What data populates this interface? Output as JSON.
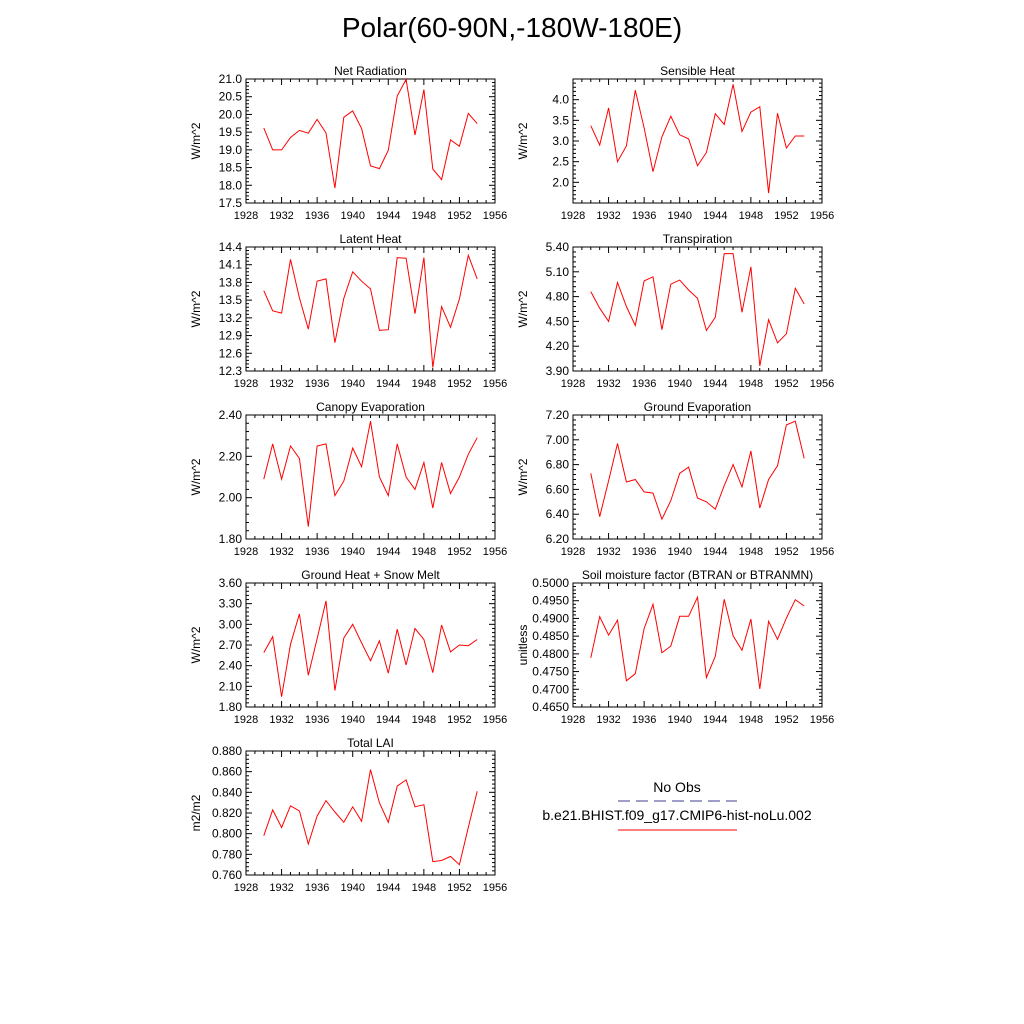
{
  "title": "Polar(60-90N,-180W-180E)",
  "line_color": "#ff0000",
  "legend": {
    "obs_label": "No Obs",
    "obs_color": "#3c3c8c",
    "obs_style": "dashed",
    "model_label": "b.e21.BHIST.f09_g17.CMIP6-hist-noLu.002",
    "model_color": "#ff0000"
  },
  "chart_data": [
    {
      "type": "line",
      "title": "Net Radiation",
      "ylabel": "W/m^2",
      "xlim": [
        1928,
        1956
      ],
      "xticks": [
        "1928",
        "1932",
        "1936",
        "1940",
        "1944",
        "1948",
        "1952",
        "1956"
      ],
      "ylim": [
        17.5,
        21.0
      ],
      "yticks": [
        "17.5",
        "18.0",
        "18.5",
        "19.0",
        "19.5",
        "20.0",
        "20.5",
        "21.0"
      ],
      "x": [
        1930,
        1931,
        1932,
        1933,
        1934,
        1935,
        1936,
        1937,
        1938,
        1939,
        1940,
        1941,
        1942,
        1943,
        1944,
        1945,
        1946,
        1947,
        1948,
        1949,
        1950,
        1951,
        1952,
        1953,
        1954
      ],
      "series": [
        {
          "values": [
            19.62,
            19.0,
            19.0,
            19.35,
            19.55,
            19.47,
            19.86,
            19.48,
            17.92,
            19.92,
            20.1,
            19.6,
            18.55,
            18.47,
            18.99,
            20.52,
            20.99,
            19.42,
            20.7,
            18.46,
            18.16,
            19.28,
            19.1,
            20.03,
            19.74
          ]
        }
      ]
    },
    {
      "type": "line",
      "title": "Sensible Heat",
      "ylabel": "W/m^2",
      "xlim": [
        1928,
        1956
      ],
      "xticks": [
        "1928",
        "1932",
        "1936",
        "1940",
        "1944",
        "1948",
        "1952",
        "1956"
      ],
      "ylim": [
        1.5,
        4.5
      ],
      "yticks": [
        "2.0",
        "2.5",
        "3.0",
        "3.5",
        "4.0"
      ],
      "x": [
        1930,
        1931,
        1932,
        1933,
        1934,
        1935,
        1936,
        1937,
        1938,
        1939,
        1940,
        1941,
        1942,
        1943,
        1944,
        1945,
        1946,
        1947,
        1948,
        1949,
        1950,
        1951,
        1952,
        1953,
        1954
      ],
      "series": [
        {
          "values": [
            3.37,
            2.9,
            3.8,
            2.5,
            2.88,
            4.23,
            3.32,
            2.26,
            3.1,
            3.6,
            3.15,
            3.05,
            2.4,
            2.72,
            3.66,
            3.4,
            4.37,
            3.23,
            3.7,
            3.83,
            1.74,
            3.67,
            2.83,
            3.12,
            3.12
          ]
        }
      ]
    },
    {
      "type": "line",
      "title": "Latent Heat",
      "ylabel": "W/m^2",
      "xlim": [
        1928,
        1956
      ],
      "xticks": [
        "1928",
        "1932",
        "1936",
        "1940",
        "1944",
        "1948",
        "1952",
        "1956"
      ],
      "ylim": [
        12.3,
        14.4
      ],
      "yticks": [
        "12.3",
        "12.6",
        "12.9",
        "13.2",
        "13.5",
        "13.8",
        "14.1",
        "14.4"
      ],
      "x": [
        1930,
        1931,
        1932,
        1933,
        1934,
        1935,
        1936,
        1937,
        1938,
        1939,
        1940,
        1941,
        1942,
        1943,
        1944,
        1945,
        1946,
        1947,
        1948,
        1949,
        1950,
        1951,
        1952,
        1953,
        1954
      ],
      "series": [
        {
          "values": [
            13.66,
            13.32,
            13.28,
            14.19,
            13.54,
            13.01,
            13.82,
            13.86,
            12.78,
            13.53,
            13.98,
            13.82,
            13.69,
            12.99,
            13.0,
            14.22,
            14.21,
            13.27,
            14.22,
            12.36,
            13.39,
            13.04,
            13.52,
            14.26,
            13.86
          ]
        }
      ]
    },
    {
      "type": "line",
      "title": "Transpiration",
      "ylabel": "W/m^2",
      "xlim": [
        1928,
        1956
      ],
      "xticks": [
        "1928",
        "1932",
        "1936",
        "1940",
        "1944",
        "1948",
        "1952",
        "1956"
      ],
      "ylim": [
        3.9,
        5.4
      ],
      "yticks": [
        "3.90",
        "4.20",
        "4.50",
        "4.80",
        "5.10",
        "5.40"
      ],
      "x": [
        1930,
        1931,
        1932,
        1933,
        1934,
        1935,
        1936,
        1937,
        1938,
        1939,
        1940,
        1941,
        1942,
        1943,
        1944,
        1945,
        1946,
        1947,
        1948,
        1949,
        1950,
        1951,
        1952,
        1953,
        1954
      ],
      "series": [
        {
          "values": [
            4.86,
            4.66,
            4.5,
            4.97,
            4.68,
            4.45,
            4.99,
            5.04,
            4.4,
            4.95,
            5.0,
            4.88,
            4.78,
            4.39,
            4.55,
            5.32,
            5.32,
            4.61,
            5.16,
            3.96,
            4.52,
            4.24,
            4.35,
            4.9,
            4.71
          ]
        }
      ]
    },
    {
      "type": "line",
      "title": "Canopy Evaporation",
      "ylabel": "W/m^2",
      "xlim": [
        1928,
        1956
      ],
      "xticks": [
        "1928",
        "1932",
        "1936",
        "1940",
        "1944",
        "1948",
        "1952",
        "1956"
      ],
      "ylim": [
        1.8,
        2.4
      ],
      "yticks": [
        "1.80",
        "2.00",
        "2.20",
        "2.40"
      ],
      "x": [
        1930,
        1931,
        1932,
        1933,
        1934,
        1935,
        1936,
        1937,
        1938,
        1939,
        1940,
        1941,
        1942,
        1943,
        1944,
        1945,
        1946,
        1947,
        1948,
        1949,
        1950,
        1951,
        1952,
        1953,
        1954
      ],
      "series": [
        {
          "values": [
            2.09,
            2.26,
            2.09,
            2.25,
            2.19,
            1.86,
            2.25,
            2.26,
            2.01,
            2.08,
            2.24,
            2.15,
            2.37,
            2.1,
            2.01,
            2.26,
            2.1,
            2.04,
            2.17,
            1.95,
            2.17,
            2.02,
            2.1,
            2.21,
            2.29
          ]
        }
      ]
    },
    {
      "type": "line",
      "title": "Ground Evaporation",
      "ylabel": "W/m^2",
      "xlim": [
        1928,
        1956
      ],
      "xticks": [
        "1928",
        "1932",
        "1936",
        "1940",
        "1944",
        "1948",
        "1952",
        "1956"
      ],
      "ylim": [
        6.2,
        7.2
      ],
      "yticks": [
        "6.20",
        "6.40",
        "6.60",
        "6.80",
        "7.00",
        "7.20"
      ],
      "x": [
        1930,
        1931,
        1932,
        1933,
        1934,
        1935,
        1936,
        1937,
        1938,
        1939,
        1940,
        1941,
        1942,
        1943,
        1944,
        1945,
        1946,
        1947,
        1948,
        1949,
        1950,
        1951,
        1952,
        1953,
        1954
      ],
      "series": [
        {
          "values": [
            6.73,
            6.38,
            6.67,
            6.97,
            6.66,
            6.68,
            6.58,
            6.57,
            6.36,
            6.51,
            6.73,
            6.78,
            6.53,
            6.5,
            6.44,
            6.63,
            6.8,
            6.62,
            6.91,
            6.45,
            6.68,
            6.79,
            7.12,
            7.15,
            6.85
          ]
        }
      ]
    },
    {
      "type": "line",
      "title": "Ground Heat + Snow Melt",
      "ylabel": "W/m^2",
      "xlim": [
        1928,
        1956
      ],
      "xticks": [
        "1928",
        "1932",
        "1936",
        "1940",
        "1944",
        "1948",
        "1952",
        "1956"
      ],
      "ylim": [
        1.8,
        3.6
      ],
      "yticks": [
        "1.80",
        "2.10",
        "2.40",
        "2.70",
        "3.00",
        "3.30",
        "3.60"
      ],
      "x": [
        1930,
        1931,
        1932,
        1933,
        1934,
        1935,
        1936,
        1937,
        1938,
        1939,
        1940,
        1941,
        1942,
        1943,
        1944,
        1945,
        1946,
        1947,
        1948,
        1949,
        1950,
        1951,
        1952,
        1953,
        1954
      ],
      "series": [
        {
          "values": [
            2.59,
            2.82,
            1.95,
            2.71,
            3.15,
            2.26,
            2.79,
            3.34,
            2.04,
            2.8,
            3.0,
            2.73,
            2.47,
            2.76,
            2.29,
            2.93,
            2.41,
            2.94,
            2.78,
            2.3,
            2.99,
            2.6,
            2.7,
            2.69,
            2.78
          ]
        }
      ]
    },
    {
      "type": "line",
      "title": "Soil moisture factor (BTRAN or BTRANMN)",
      "ylabel": "unitless",
      "xlim": [
        1928,
        1956
      ],
      "xticks": [
        "1928",
        "1932",
        "1936",
        "1940",
        "1944",
        "1948",
        "1952",
        "1956"
      ],
      "ylim": [
        0.465,
        0.5
      ],
      "yticks": [
        "0.4650",
        "0.4700",
        "0.4750",
        "0.4800",
        "0.4850",
        "0.4900",
        "0.4950",
        "0.5000"
      ],
      "x": [
        1930,
        1931,
        1932,
        1933,
        1934,
        1935,
        1936,
        1937,
        1938,
        1939,
        1940,
        1941,
        1942,
        1943,
        1944,
        1945,
        1946,
        1947,
        1948,
        1949,
        1950,
        1951,
        1952,
        1953,
        1954
      ],
      "series": [
        {
          "values": [
            0.4789,
            0.4905,
            0.4853,
            0.4895,
            0.4724,
            0.4744,
            0.4871,
            0.494,
            0.4803,
            0.4822,
            0.4906,
            0.4906,
            0.496,
            0.4733,
            0.4793,
            0.4954,
            0.4851,
            0.481,
            0.4898,
            0.4701,
            0.4892,
            0.4841,
            0.4901,
            0.4953,
            0.4935
          ]
        }
      ]
    },
    {
      "type": "line",
      "title": "Total LAI",
      "ylabel": "m2/m2",
      "xlim": [
        1928,
        1956
      ],
      "xticks": [
        "1928",
        "1932",
        "1936",
        "1940",
        "1944",
        "1948",
        "1952",
        "1956"
      ],
      "ylim": [
        0.76,
        0.88
      ],
      "yticks": [
        "0.760",
        "0.780",
        "0.800",
        "0.820",
        "0.840",
        "0.860",
        "0.880"
      ],
      "x": [
        1930,
        1931,
        1932,
        1933,
        1934,
        1935,
        1936,
        1937,
        1938,
        1939,
        1940,
        1941,
        1942,
        1943,
        1944,
        1945,
        1946,
        1947,
        1948,
        1949,
        1950,
        1951,
        1952,
        1953,
        1954
      ],
      "series": [
        {
          "values": [
            0.798,
            0.823,
            0.806,
            0.827,
            0.822,
            0.79,
            0.817,
            0.832,
            0.821,
            0.811,
            0.826,
            0.812,
            0.862,
            0.83,
            0.811,
            0.846,
            0.852,
            0.826,
            0.828,
            0.773,
            0.774,
            0.778,
            0.77,
            0.806,
            0.841
          ]
        }
      ]
    }
  ]
}
